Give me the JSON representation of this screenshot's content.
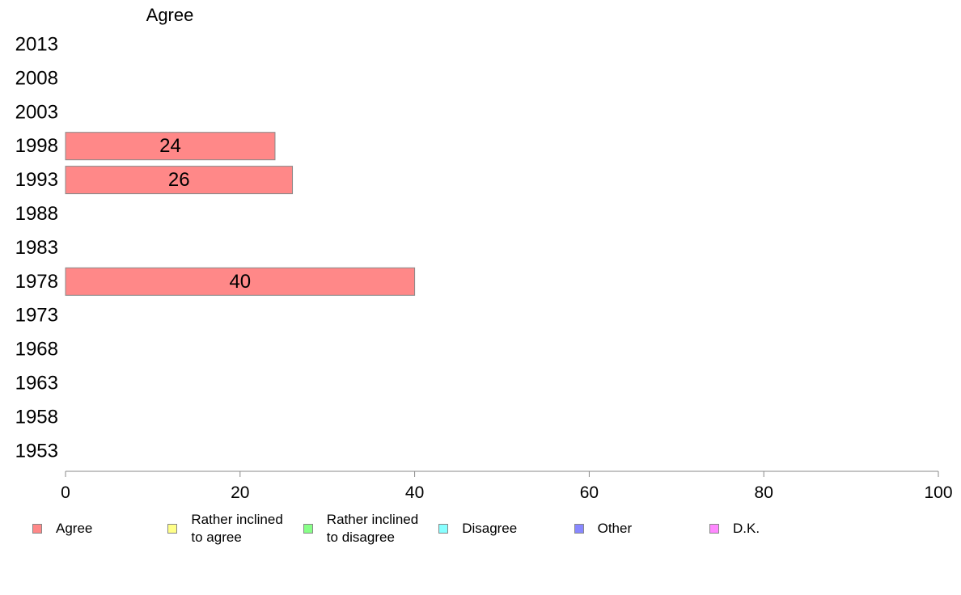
{
  "chart_data": {
    "type": "bar",
    "title": "Agree",
    "categories": [
      "2013",
      "2008",
      "2003",
      "1998",
      "1993",
      "1988",
      "1983",
      "1978",
      "1973",
      "1968",
      "1963",
      "1958",
      "1953"
    ],
    "series": [
      {
        "name": "Agree",
        "color": "#ff8888",
        "values": [
          null,
          null,
          null,
          24,
          26,
          null,
          null,
          40,
          null,
          null,
          null,
          null,
          null
        ]
      }
    ],
    "xlim": [
      0,
      100
    ],
    "xticks": [
      "0",
      "20",
      "40",
      "60",
      "80",
      "100"
    ],
    "orientation": "horizontal",
    "grid": false,
    "legend_position": "bottom"
  },
  "legend": [
    {
      "label": "Agree",
      "color": "#ff8888"
    },
    {
      "label": "Rather inclined to agree",
      "color": "#ffff88"
    },
    {
      "label": "Rather inclined to disagree",
      "color": "#88ff88"
    },
    {
      "label": "Disagree",
      "color": "#88ffff"
    },
    {
      "label": "Other",
      "color": "#8888ff"
    },
    {
      "label": "D.K.",
      "color": "#ff88ff"
    }
  ]
}
